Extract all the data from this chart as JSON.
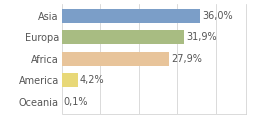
{
  "categories": [
    "Asia",
    "Europa",
    "Africa",
    "America",
    "Oceania"
  ],
  "values": [
    36.0,
    31.9,
    27.9,
    4.2,
    0.1
  ],
  "labels": [
    "36,0%",
    "31,9%",
    "27,9%",
    "4,2%",
    "0,1%"
  ],
  "bar_colors": [
    "#7b9ec8",
    "#a8bc82",
    "#e8c49a",
    "#e8d878",
    "#e8c49a"
  ],
  "background_color": "#ffffff",
  "xlim": [
    0,
    48
  ],
  "bar_height": 0.65,
  "label_fontsize": 7,
  "tick_fontsize": 7,
  "text_color": "#555555",
  "grid_color": "#cccccc"
}
